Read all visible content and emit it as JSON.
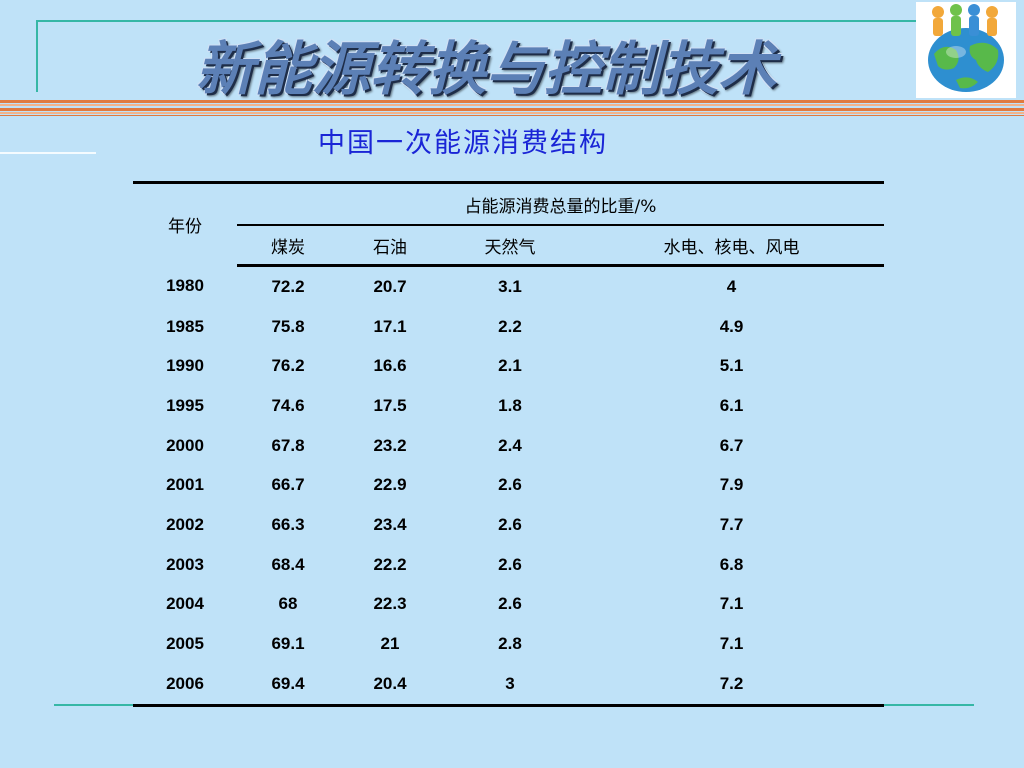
{
  "title": "新能源转换与控制技术",
  "subtitle": "中国一次能源消费结构",
  "logo_icon": "globe-people-icon",
  "colors": {
    "background": "#bfe2f8",
    "accent_line": "#36b7a6",
    "stripe": "#e07a3f",
    "subtitle": "#1a25d6",
    "title": "#5c80b6"
  },
  "table": {
    "year_header": "年份",
    "group_header": "占能源消费总量的比重/%",
    "columns": [
      "煤炭",
      "石油",
      "天然气",
      "水电、核电、风电"
    ],
    "rows": [
      [
        "1980",
        "72.2",
        "20.7",
        "3.1",
        "4"
      ],
      [
        "1985",
        "75.8",
        "17.1",
        "2.2",
        "4.9"
      ],
      [
        "1990",
        "76.2",
        "16.6",
        "2.1",
        "5.1"
      ],
      [
        "1995",
        "74.6",
        "17.5",
        "1.8",
        "6.1"
      ],
      [
        "2000",
        "67.8",
        "23.2",
        "2.4",
        "6.7"
      ],
      [
        "2001",
        "66.7",
        "22.9",
        "2.6",
        "7.9"
      ],
      [
        "2002",
        "66.3",
        "23.4",
        "2.6",
        "7.7"
      ],
      [
        "2003",
        "68.4",
        "22.2",
        "2.6",
        "6.8"
      ],
      [
        "2004",
        "68",
        "22.3",
        "2.6",
        "7.1"
      ],
      [
        "2005",
        "69.1",
        "21",
        "2.8",
        "7.1"
      ],
      [
        "2006",
        "69.4",
        "20.4",
        "3",
        "7.2"
      ]
    ]
  }
}
